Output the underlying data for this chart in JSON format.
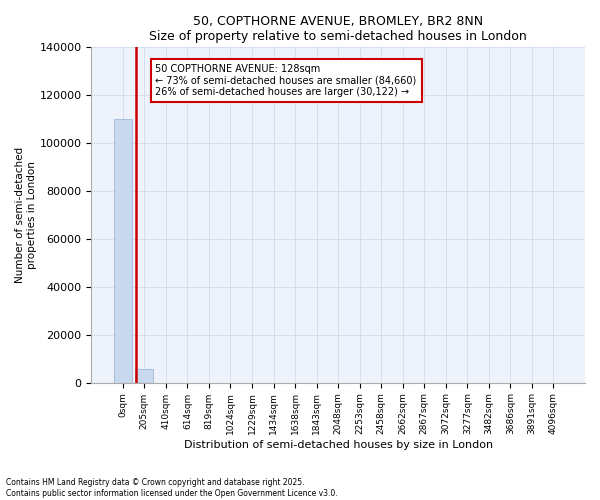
{
  "title": "50, COPTHORNE AVENUE, BROMLEY, BR2 8NN",
  "subtitle": "Size of property relative to semi-detached houses in London",
  "xlabel": "Distribution of semi-detached houses by size in London",
  "ylabel": "Number of semi-detached\nproperties in London",
  "bar_color": "#c8d8ee",
  "bar_edge_color": "#a0b8d8",
  "highlight_color": "#cc0000",
  "annotation_text": "50 COPTHORNE AVENUE: 128sqm\n← 73% of semi-detached houses are smaller (84,660)\n26% of semi-detached houses are larger (30,122) →",
  "property_size": 128,
  "red_line_x": 0.62,
  "ylim": [
    0,
    140000
  ],
  "footer": "Contains HM Land Registry data © Crown copyright and database right 2025.\nContains public sector information licensed under the Open Government Licence v3.0.",
  "bin_labels": [
    "0sqm",
    "205sqm",
    "410sqm",
    "614sqm",
    "819sqm",
    "1024sqm",
    "1229sqm",
    "1434sqm",
    "1638sqm",
    "1843sqm",
    "2048sqm",
    "2253sqm",
    "2458sqm",
    "2662sqm",
    "2867sqm",
    "3072sqm",
    "3277sqm",
    "3482sqm",
    "3686sqm",
    "3891sqm",
    "4096sqm"
  ],
  "bar_values": [
    110000,
    5500,
    0,
    0,
    0,
    0,
    0,
    0,
    0,
    0,
    0,
    0,
    0,
    0,
    0,
    0,
    0,
    0,
    0,
    0,
    0
  ],
  "yticks": [
    0,
    20000,
    40000,
    60000,
    80000,
    100000,
    120000,
    140000
  ]
}
